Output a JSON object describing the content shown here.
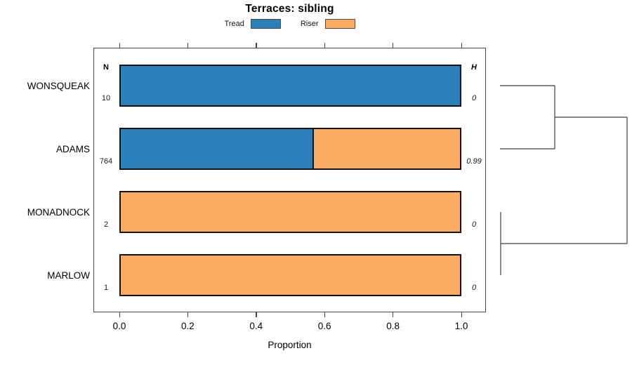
{
  "title": "Terraces: sibling",
  "legend": [
    {
      "label": "Tread",
      "color": "#2C80B8"
    },
    {
      "label": "Riser",
      "color": "#FBAD63"
    }
  ],
  "columns": {
    "n_header": "N",
    "h_header": "H"
  },
  "axis": {
    "tick_values": [
      0,
      0.2,
      0.4,
      0.6,
      0.8,
      1.0
    ],
    "tick_labels": [
      "0.0",
      "0.2",
      "0.4",
      "0.6",
      "0.8",
      "1.0"
    ],
    "xlabel": "Proportion"
  },
  "chart_data": {
    "type": "bar",
    "orientation": "horizontal",
    "stacked": true,
    "title": "Terraces: sibling",
    "xlabel": "Proportion",
    "xlim": [
      0,
      1
    ],
    "x_ticks": [
      0,
      0.2,
      0.4,
      0.6,
      0.8,
      1.0
    ],
    "categories": [
      "WONSQUEAK",
      "ADAMS",
      "MONADNOCK",
      "MARLOW"
    ],
    "series": [
      {
        "name": "Tread",
        "color": "#2C80B8",
        "values": [
          1.0,
          0.565,
          0,
          0
        ]
      },
      {
        "name": "Riser",
        "color": "#FBAD63",
        "values": [
          0,
          0.435,
          1.0,
          1.0
        ]
      }
    ],
    "n_values": [
      "10",
      "764",
      "2",
      "1"
    ],
    "h_values": [
      "0",
      "0.99",
      "0",
      "0"
    ],
    "legend_position": "top",
    "grid": false,
    "dendrogram": {
      "note": "x: 0 = leaf line, 1 = root; y: row index of categories",
      "segments": [
        [
          0,
          0,
          0.431,
          0
        ],
        [
          0,
          1,
          0.431,
          1
        ],
        [
          0.431,
          0,
          0.431,
          1
        ],
        [
          0.431,
          0.5,
          1,
          0.5
        ],
        [
          0.0055,
          2,
          0.0055,
          3
        ],
        [
          0.0055,
          2.5,
          1,
          2.5
        ],
        [
          1,
          0.5,
          1,
          2.5
        ]
      ]
    }
  }
}
